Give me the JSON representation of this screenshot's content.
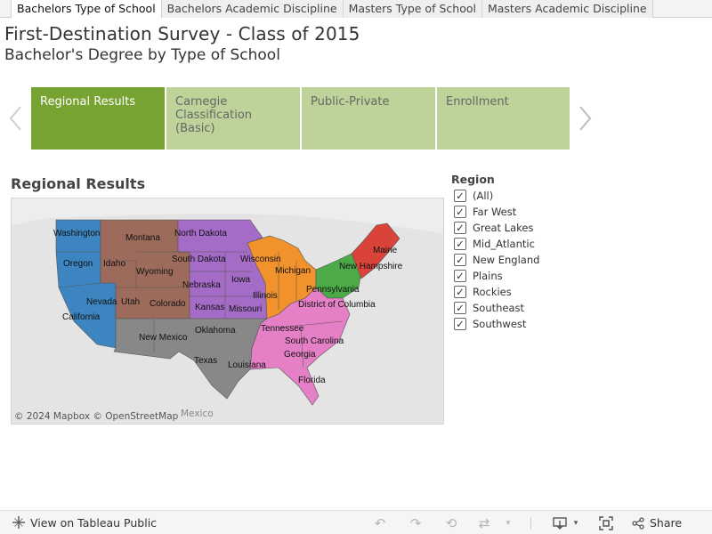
{
  "tabs": [
    {
      "label": "Bachelors Type of School",
      "active": true
    },
    {
      "label": "Bachelors Academic Discipline",
      "active": false
    },
    {
      "label": "Masters Type of School",
      "active": false
    },
    {
      "label": "Masters Academic Discipline",
      "active": false
    }
  ],
  "header": {
    "title": "First-Destination Survey - Class of 2015",
    "subtitle": "Bachelor's Degree by Type of School"
  },
  "story_points": [
    {
      "label": "Regional Results",
      "active": true
    },
    {
      "label": "Carnegie Classification (Basic)",
      "active": false
    },
    {
      "label": "Public-Private",
      "active": false
    },
    {
      "label": "Enrollment",
      "active": false
    }
  ],
  "map": {
    "title": "Regional Results",
    "attribution": "© 2024 Mapbox  © OpenStreetMap",
    "background_label": "Mexico",
    "region_colors": {
      "Far West": "#3d85c0",
      "Rockies": "#9c6b5b",
      "Plains": "#a56cc7",
      "Great Lakes": "#f2922d",
      "Mid_Atlantic": "#4caa48",
      "New England": "#d9433a",
      "Southeast": "#e580c6",
      "Southwest": "#888888"
    },
    "state_labels": {
      "washington": "Washington",
      "oregon": "Oregon",
      "california": "California",
      "nevada": "Nevada",
      "idaho": "Idaho",
      "montana": "Montana",
      "wyoming": "Wyoming",
      "utah": "Utah",
      "colorado": "Colorado",
      "north_dakota": "North Dakota",
      "south_dakota": "South Dakota",
      "nebraska": "Nebraska",
      "kansas": "Kansas",
      "iowa": "Iowa",
      "missouri": "Missouri",
      "wisconsin": "Wisconsin",
      "michigan": "Michigan",
      "illinois": "Illinois",
      "pennsylvania": "Pennsylvania",
      "dc": "District of Columbia",
      "new_hampshire": "New Hampshire",
      "maine": "Maine",
      "tennessee": "Tennessee",
      "south_carolina": "South Carolina",
      "georgia": "Georgia",
      "louisiana": "Louisiana",
      "florida": "Florida",
      "new_mexico": "New Mexico",
      "oklahoma": "Oklahoma",
      "texas": "Texas"
    }
  },
  "filter": {
    "title": "Region",
    "items": [
      {
        "label": "(All)",
        "checked": true
      },
      {
        "label": "Far West",
        "checked": true
      },
      {
        "label": "Great Lakes",
        "checked": true
      },
      {
        "label": "Mid_Atlantic",
        "checked": true
      },
      {
        "label": "New England",
        "checked": true
      },
      {
        "label": "Plains",
        "checked": true
      },
      {
        "label": "Rockies",
        "checked": true
      },
      {
        "label": "Southeast",
        "checked": true
      },
      {
        "label": "Southwest",
        "checked": true
      }
    ]
  },
  "footer": {
    "view_label": "View on Tableau Public",
    "share_label": "Share",
    "icons": [
      "tableau-icon",
      "undo-icon",
      "redo-icon",
      "revert-icon",
      "refresh-icon",
      "download-icon",
      "fullscreen-icon",
      "share-icon"
    ]
  }
}
